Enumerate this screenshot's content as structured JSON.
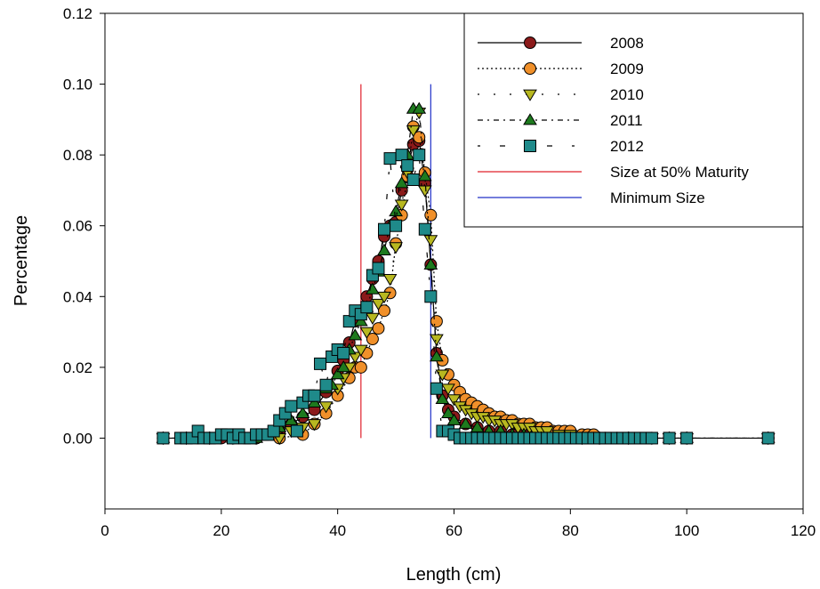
{
  "chart_data": {
    "type": "line",
    "title": "",
    "xlabel": "Length (cm)",
    "ylabel": "Percentage",
    "xlim": [
      0,
      120
    ],
    "ylim": [
      -0.02,
      0.12
    ],
    "xticks": [
      0,
      20,
      40,
      60,
      80,
      100,
      120
    ],
    "yticks": [
      0.0,
      0.02,
      0.04,
      0.06,
      0.08,
      0.1,
      0.12
    ],
    "ytick_labels": [
      "0.00",
      "0.02",
      "0.04",
      "0.06",
      "0.08",
      "0.10",
      "0.12"
    ],
    "grid": false,
    "legend_position": "top-right",
    "series": [
      {
        "name": "2008",
        "marker": "circle",
        "line": "solid",
        "color": "#8b1a1a",
        "points": [
          [
            10,
            0
          ],
          [
            14,
            0
          ],
          [
            16,
            0
          ],
          [
            18,
            0
          ],
          [
            20,
            0
          ],
          [
            22,
            0
          ],
          [
            24,
            0
          ],
          [
            26,
            0
          ],
          [
            28,
            0.001
          ],
          [
            30,
            0.002
          ],
          [
            32,
            0.004
          ],
          [
            34,
            0.006
          ],
          [
            36,
            0.008
          ],
          [
            38,
            0.013
          ],
          [
            40,
            0.019
          ],
          [
            41,
            0.022
          ],
          [
            42,
            0.027
          ],
          [
            43,
            0.033
          ],
          [
            44,
            0.036
          ],
          [
            45,
            0.04
          ],
          [
            46,
            0.045
          ],
          [
            47,
            0.05
          ],
          [
            48,
            0.057
          ],
          [
            49,
            0.06
          ],
          [
            50,
            0.061
          ],
          [
            51,
            0.07
          ],
          [
            52,
            0.076
          ],
          [
            53,
            0.083
          ],
          [
            54,
            0.084
          ],
          [
            55,
            0.072
          ],
          [
            56,
            0.049
          ],
          [
            57,
            0.024
          ],
          [
            58,
            0.012
          ],
          [
            59,
            0.008
          ],
          [
            60,
            0.006
          ],
          [
            62,
            0.004
          ],
          [
            64,
            0.003
          ],
          [
            66,
            0.002
          ],
          [
            68,
            0.002
          ],
          [
            70,
            0.001
          ],
          [
            72,
            0.001
          ],
          [
            75,
            0
          ],
          [
            80,
            0
          ],
          [
            85,
            0
          ],
          [
            90,
            0
          ],
          [
            97,
            0
          ],
          [
            100,
            0
          ],
          [
            114,
            0
          ]
        ]
      },
      {
        "name": "2009",
        "marker": "circle",
        "line": "dotted",
        "color": "#f0902a",
        "points": [
          [
            10,
            0
          ],
          [
            14,
            0
          ],
          [
            18,
            0
          ],
          [
            22,
            0
          ],
          [
            26,
            0
          ],
          [
            30,
            0
          ],
          [
            34,
            0.001
          ],
          [
            36,
            0.004
          ],
          [
            38,
            0.007
          ],
          [
            40,
            0.012
          ],
          [
            42,
            0.017
          ],
          [
            43,
            0.02
          ],
          [
            44,
            0.02
          ],
          [
            45,
            0.024
          ],
          [
            46,
            0.028
          ],
          [
            47,
            0.031
          ],
          [
            48,
            0.036
          ],
          [
            49,
            0.041
          ],
          [
            50,
            0.055
          ],
          [
            51,
            0.063
          ],
          [
            52,
            0.074
          ],
          [
            53,
            0.088
          ],
          [
            54,
            0.085
          ],
          [
            55,
            0.075
          ],
          [
            56,
            0.063
          ],
          [
            57,
            0.033
          ],
          [
            58,
            0.022
          ],
          [
            59,
            0.018
          ],
          [
            60,
            0.015
          ],
          [
            61,
            0.013
          ],
          [
            62,
            0.011
          ],
          [
            63,
            0.01
          ],
          [
            64,
            0.009
          ],
          [
            65,
            0.008
          ],
          [
            66,
            0.007
          ],
          [
            67,
            0.006
          ],
          [
            68,
            0.006
          ],
          [
            69,
            0.005
          ],
          [
            70,
            0.005
          ],
          [
            71,
            0.004
          ],
          [
            72,
            0.004
          ],
          [
            73,
            0.004
          ],
          [
            74,
            0.003
          ],
          [
            75,
            0.003
          ],
          [
            76,
            0.003
          ],
          [
            77,
            0.002
          ],
          [
            78,
            0.002
          ],
          [
            79,
            0.002
          ],
          [
            80,
            0.002
          ],
          [
            82,
            0.001
          ],
          [
            83,
            0.001
          ],
          [
            84,
            0.001
          ],
          [
            86,
            0
          ],
          [
            88,
            0
          ],
          [
            90,
            0
          ],
          [
            94,
            0
          ],
          [
            97,
            0
          ],
          [
            100,
            0
          ],
          [
            114,
            0
          ]
        ]
      },
      {
        "name": "2010",
        "marker": "triangle-down",
        "line": "sparse-dotted",
        "color": "#b8b820",
        "points": [
          [
            10,
            0
          ],
          [
            14,
            0
          ],
          [
            18,
            0
          ],
          [
            22,
            0
          ],
          [
            26,
            0
          ],
          [
            30,
            0
          ],
          [
            32,
            0.002
          ],
          [
            34,
            0.003
          ],
          [
            36,
            0.004
          ],
          [
            38,
            0.009
          ],
          [
            40,
            0.014
          ],
          [
            41,
            0.017
          ],
          [
            42,
            0.02
          ],
          [
            43,
            0.023
          ],
          [
            44,
            0.025
          ],
          [
            45,
            0.03
          ],
          [
            46,
            0.034
          ],
          [
            47,
            0.038
          ],
          [
            48,
            0.04
          ],
          [
            49,
            0.045
          ],
          [
            50,
            0.054
          ],
          [
            51,
            0.066
          ],
          [
            52,
            0.075
          ],
          [
            53,
            0.087
          ],
          [
            54,
            0.092
          ],
          [
            55,
            0.07
          ],
          [
            56,
            0.056
          ],
          [
            57,
            0.028
          ],
          [
            58,
            0.018
          ],
          [
            59,
            0.014
          ],
          [
            60,
            0.011
          ],
          [
            61,
            0.009
          ],
          [
            62,
            0.008
          ],
          [
            63,
            0.007
          ],
          [
            64,
            0.006
          ],
          [
            65,
            0.006
          ],
          [
            66,
            0.005
          ],
          [
            67,
            0.005
          ],
          [
            68,
            0.004
          ],
          [
            69,
            0.004
          ],
          [
            70,
            0.004
          ],
          [
            71,
            0.003
          ],
          [
            72,
            0.003
          ],
          [
            73,
            0.003
          ],
          [
            74,
            0.002
          ],
          [
            75,
            0.002
          ],
          [
            76,
            0.002
          ],
          [
            78,
            0.001
          ],
          [
            80,
            0.001
          ],
          [
            82,
            0
          ],
          [
            85,
            0
          ],
          [
            90,
            0
          ],
          [
            94,
            0
          ],
          [
            97,
            0
          ],
          [
            100,
            0
          ],
          [
            114,
            0
          ]
        ]
      },
      {
        "name": "2011",
        "marker": "triangle-up",
        "line": "dash-dot",
        "color": "#1e7a1e",
        "points": [
          [
            10,
            0
          ],
          [
            14,
            0
          ],
          [
            18,
            0
          ],
          [
            22,
            0
          ],
          [
            26,
            0
          ],
          [
            28,
            0.001
          ],
          [
            30,
            0.003
          ],
          [
            32,
            0.005
          ],
          [
            34,
            0.007
          ],
          [
            36,
            0.01
          ],
          [
            38,
            0.014
          ],
          [
            39,
            0.015
          ],
          [
            40,
            0.018
          ],
          [
            41,
            0.02
          ],
          [
            42,
            0.025
          ],
          [
            43,
            0.029
          ],
          [
            44,
            0.033
          ],
          [
            45,
            0.037
          ],
          [
            46,
            0.042
          ],
          [
            47,
            0.047
          ],
          [
            48,
            0.053
          ],
          [
            49,
            0.06
          ],
          [
            50,
            0.064
          ],
          [
            51,
            0.072
          ],
          [
            52,
            0.08
          ],
          [
            53,
            0.093
          ],
          [
            54,
            0.093
          ],
          [
            55,
            0.074
          ],
          [
            56,
            0.049
          ],
          [
            57,
            0.023
          ],
          [
            58,
            0.011
          ],
          [
            59,
            0.007
          ],
          [
            60,
            0.005
          ],
          [
            62,
            0.004
          ],
          [
            64,
            0.003
          ],
          [
            66,
            0.002
          ],
          [
            68,
            0.002
          ],
          [
            70,
            0.001
          ],
          [
            72,
            0.001
          ],
          [
            75,
            0
          ],
          [
            80,
            0
          ],
          [
            85,
            0
          ],
          [
            90,
            0
          ],
          [
            97,
            0
          ],
          [
            100,
            0
          ],
          [
            114,
            0
          ]
        ]
      },
      {
        "name": "2012",
        "marker": "square",
        "line": "sparse-dash-dot",
        "color": "#1f8a8a",
        "points": [
          [
            10,
            0
          ],
          [
            13,
            0
          ],
          [
            14,
            0
          ],
          [
            15,
            0
          ],
          [
            16,
            0.002
          ],
          [
            17,
            0
          ],
          [
            18,
            0
          ],
          [
            19,
            0
          ],
          [
            20,
            0.001
          ],
          [
            21,
            0.001
          ],
          [
            22,
            0
          ],
          [
            23,
            0.001
          ],
          [
            24,
            0
          ],
          [
            25,
            0
          ],
          [
            26,
            0.001
          ],
          [
            27,
            0.001
          ],
          [
            28,
            0.001
          ],
          [
            29,
            0.002
          ],
          [
            30,
            0.005
          ],
          [
            31,
            0.007
          ],
          [
            32,
            0.009
          ],
          [
            33,
            0.002
          ],
          [
            34,
            0.01
          ],
          [
            35,
            0.012
          ],
          [
            36,
            0.012
          ],
          [
            37,
            0.021
          ],
          [
            38,
            0.015
          ],
          [
            39,
            0.023
          ],
          [
            40,
            0.025
          ],
          [
            41,
            0.024
          ],
          [
            42,
            0.033
          ],
          [
            43,
            0.036
          ],
          [
            44,
            0.035
          ],
          [
            45,
            0.037
          ],
          [
            46,
            0.046
          ],
          [
            47,
            0.048
          ],
          [
            48,
            0.059
          ],
          [
            49,
            0.079
          ],
          [
            50,
            0.06
          ],
          [
            51,
            0.08
          ],
          [
            52,
            0.077
          ],
          [
            53,
            0.073
          ],
          [
            54,
            0.08
          ],
          [
            55,
            0.059
          ],
          [
            56,
            0.04
          ],
          [
            57,
            0.014
          ],
          [
            58,
            0.002
          ],
          [
            59,
            0.002
          ],
          [
            60,
            0.001
          ],
          [
            61,
            0
          ],
          [
            62,
            0
          ],
          [
            63,
            0
          ],
          [
            64,
            0
          ],
          [
            65,
            0
          ],
          [
            66,
            0
          ],
          [
            67,
            0
          ],
          [
            68,
            0
          ],
          [
            69,
            0
          ],
          [
            70,
            0
          ],
          [
            71,
            0
          ],
          [
            72,
            0
          ],
          [
            73,
            0
          ],
          [
            74,
            0
          ],
          [
            75,
            0
          ],
          [
            76,
            0
          ],
          [
            77,
            0
          ],
          [
            78,
            0
          ],
          [
            79,
            0
          ],
          [
            80,
            0
          ],
          [
            81,
            0
          ],
          [
            82,
            0
          ],
          [
            83,
            0
          ],
          [
            84,
            0
          ],
          [
            85,
            0
          ],
          [
            86,
            0
          ],
          [
            87,
            0
          ],
          [
            88,
            0
          ],
          [
            89,
            0
          ],
          [
            90,
            0
          ],
          [
            91,
            0
          ],
          [
            92,
            0
          ],
          [
            93,
            0
          ],
          [
            94,
            0
          ],
          [
            97,
            0
          ],
          [
            100,
            0
          ],
          [
            114,
            0
          ]
        ]
      }
    ],
    "vertical_lines": [
      {
        "name": "Size at 50% Maturity",
        "x": 44,
        "y_range": [
          0,
          0.1
        ],
        "color": "#e0202a"
      },
      {
        "name": "Minimum Size",
        "x": 56,
        "y_range": [
          0,
          0.1
        ],
        "color": "#2030c8"
      }
    ]
  }
}
